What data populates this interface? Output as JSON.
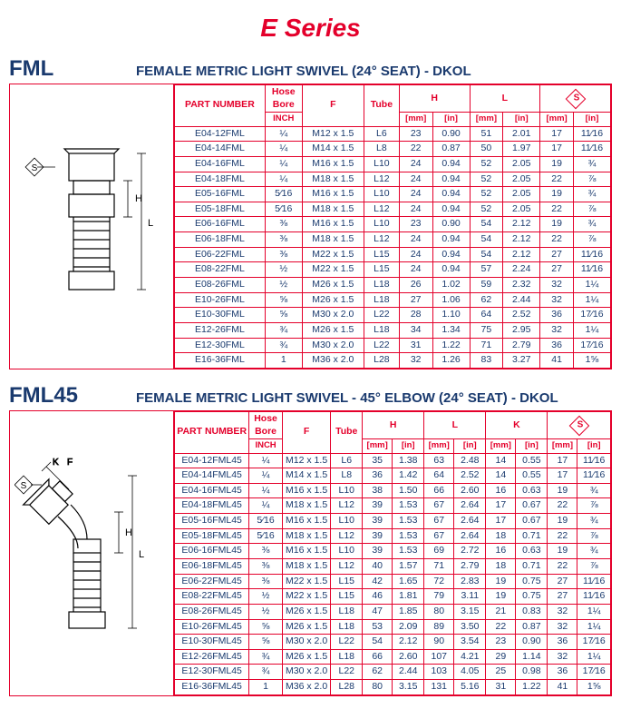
{
  "series_title": "E Series",
  "colors": {
    "red": "#e4002b",
    "blue": "#1a3a6e",
    "bg": "#ffffff"
  },
  "sections": [
    {
      "code": "FML",
      "title": "FEMALE METRIC LIGHT SWIVEL (24° SEAT) - DKOL",
      "diagram_type": "straight",
      "headers": {
        "part": "PART NUMBER",
        "bore_top": "Hose Bore",
        "bore_sub": "INCH",
        "f": "F",
        "tube": "Tube",
        "h": "H",
        "l": "L",
        "s": "S",
        "mm": "[mm]",
        "in": "[in]"
      },
      "columns": [
        "part",
        "bore",
        "f",
        "tube",
        "h_mm",
        "h_in",
        "l_mm",
        "l_in",
        "s_mm",
        "s_in"
      ],
      "has_k": false,
      "rows": [
        [
          "E04-12FML",
          "¼",
          "M12 x 1.5",
          "L6",
          "23",
          "0.90",
          "51",
          "2.01",
          "17",
          "11⁄16"
        ],
        [
          "E04-14FML",
          "¼",
          "M14 x 1.5",
          "L8",
          "22",
          "0.87",
          "50",
          "1.97",
          "17",
          "11⁄16"
        ],
        [
          "E04-16FML",
          "¼",
          "M16 x 1.5",
          "L10",
          "24",
          "0.94",
          "52",
          "2.05",
          "19",
          "¾"
        ],
        [
          "E04-18FML",
          "¼",
          "M18 x 1.5",
          "L12",
          "24",
          "0.94",
          "52",
          "2.05",
          "22",
          "⅞"
        ],
        [
          "E05-16FML",
          "5⁄16",
          "M16 x 1.5",
          "L10",
          "24",
          "0.94",
          "52",
          "2.05",
          "19",
          "¾"
        ],
        [
          "E05-18FML",
          "5⁄16",
          "M18 x 1.5",
          "L12",
          "24",
          "0.94",
          "52",
          "2.05",
          "22",
          "⅞"
        ],
        [
          "E06-16FML",
          "⅜",
          "M16 x 1.5",
          "L10",
          "23",
          "0.90",
          "54",
          "2.12",
          "19",
          "¾"
        ],
        [
          "E06-18FML",
          "⅜",
          "M18 x 1.5",
          "L12",
          "24",
          "0.94",
          "54",
          "2.12",
          "22",
          "⅞"
        ],
        [
          "E06-22FML",
          "⅜",
          "M22 x 1.5",
          "L15",
          "24",
          "0.94",
          "54",
          "2.12",
          "27",
          "11⁄16"
        ],
        [
          "E08-22FML",
          "½",
          "M22 x 1.5",
          "L15",
          "24",
          "0.94",
          "57",
          "2.24",
          "27",
          "11⁄16"
        ],
        [
          "E08-26FML",
          "½",
          "M26 x 1.5",
          "L18",
          "26",
          "1.02",
          "59",
          "2.32",
          "32",
          "1¼"
        ],
        [
          "E10-26FML",
          "⅝",
          "M26 x 1.5",
          "L18",
          "27",
          "1.06",
          "62",
          "2.44",
          "32",
          "1¼"
        ],
        [
          "E10-30FML",
          "⅝",
          "M30 x 2.0",
          "L22",
          "28",
          "1.10",
          "64",
          "2.52",
          "36",
          "17⁄16"
        ],
        [
          "E12-26FML",
          "¾",
          "M26 x 1.5",
          "L18",
          "34",
          "1.34",
          "75",
          "2.95",
          "32",
          "1¼"
        ],
        [
          "E12-30FML",
          "¾",
          "M30 x 2.0",
          "L22",
          "31",
          "1.22",
          "71",
          "2.79",
          "36",
          "17⁄16"
        ],
        [
          "E16-36FML",
          "1",
          "M36 x 2.0",
          "L28",
          "32",
          "1.26",
          "83",
          "3.27",
          "41",
          "1⅝"
        ]
      ]
    },
    {
      "code": "FML45",
      "title": "FEMALE METRIC LIGHT SWIVEL - 45° ELBOW (24° SEAT) - DKOL",
      "diagram_type": "elbow45",
      "headers": {
        "part": "PART NUMBER",
        "bore_top": "Hose Bore",
        "bore_sub": "INCH",
        "f": "F",
        "tube": "Tube",
        "h": "H",
        "l": "L",
        "k": "K",
        "s": "S",
        "mm": "[mm]",
        "in": "[in]"
      },
      "columns": [
        "part",
        "bore",
        "f",
        "tube",
        "h_mm",
        "h_in",
        "l_mm",
        "l_in",
        "k_mm",
        "k_in",
        "s_mm",
        "s_in"
      ],
      "has_k": true,
      "rows": [
        [
          "E04-12FML45",
          "¼",
          "M12 x 1.5",
          "L6",
          "35",
          "1.38",
          "63",
          "2.48",
          "14",
          "0.55",
          "17",
          "11⁄16"
        ],
        [
          "E04-14FML45",
          "¼",
          "M14 x 1.5",
          "L8",
          "36",
          "1.42",
          "64",
          "2.52",
          "14",
          "0.55",
          "17",
          "11⁄16"
        ],
        [
          "E04-16FML45",
          "¼",
          "M16 x 1.5",
          "L10",
          "38",
          "1.50",
          "66",
          "2.60",
          "16",
          "0.63",
          "19",
          "¾"
        ],
        [
          "E04-18FML45",
          "¼",
          "M18 x 1.5",
          "L12",
          "39",
          "1.53",
          "67",
          "2.64",
          "17",
          "0.67",
          "22",
          "⅞"
        ],
        [
          "E05-16FML45",
          "5⁄16",
          "M16 x 1.5",
          "L10",
          "39",
          "1.53",
          "67",
          "2.64",
          "17",
          "0.67",
          "19",
          "¾"
        ],
        [
          "E05-18FML45",
          "5⁄16",
          "M18 x 1.5",
          "L12",
          "39",
          "1.53",
          "67",
          "2.64",
          "18",
          "0.71",
          "22",
          "⅞"
        ],
        [
          "E06-16FML45",
          "⅜",
          "M16 x 1.5",
          "L10",
          "39",
          "1.53",
          "69",
          "2.72",
          "16",
          "0.63",
          "19",
          "¾"
        ],
        [
          "E06-18FML45",
          "⅜",
          "M18 x 1.5",
          "L12",
          "40",
          "1.57",
          "71",
          "2.79",
          "18",
          "0.71",
          "22",
          "⅞"
        ],
        [
          "E06-22FML45",
          "⅜",
          "M22 x 1.5",
          "L15",
          "42",
          "1.65",
          "72",
          "2.83",
          "19",
          "0.75",
          "27",
          "11⁄16"
        ],
        [
          "E08-22FML45",
          "½",
          "M22 x 1.5",
          "L15",
          "46",
          "1.81",
          "79",
          "3.11",
          "19",
          "0.75",
          "27",
          "11⁄16"
        ],
        [
          "E08-26FML45",
          "½",
          "M26 x 1.5",
          "L18",
          "47",
          "1.85",
          "80",
          "3.15",
          "21",
          "0.83",
          "32",
          "1¼"
        ],
        [
          "E10-26FML45",
          "⅝",
          "M26 x 1.5",
          "L18",
          "53",
          "2.09",
          "89",
          "3.50",
          "22",
          "0.87",
          "32",
          "1¼"
        ],
        [
          "E10-30FML45",
          "⅝",
          "M30 x 2.0",
          "L22",
          "54",
          "2.12",
          "90",
          "3.54",
          "23",
          "0.90",
          "36",
          "17⁄16"
        ],
        [
          "E12-26FML45",
          "¾",
          "M26 x 1.5",
          "L18",
          "66",
          "2.60",
          "107",
          "4.21",
          "29",
          "1.14",
          "32",
          "1¼"
        ],
        [
          "E12-30FML45",
          "¾",
          "M30 x 2.0",
          "L22",
          "62",
          "2.44",
          "103",
          "4.05",
          "25",
          "0.98",
          "36",
          "17⁄16"
        ],
        [
          "E16-36FML45",
          "1",
          "M36 x 2.0",
          "L28",
          "80",
          "3.15",
          "131",
          "5.16",
          "31",
          "1.22",
          "41",
          "1⅝"
        ]
      ]
    }
  ],
  "diagram_labels": {
    "s": "S",
    "h": "H",
    "l": "L",
    "k": "K",
    "f": "F"
  }
}
